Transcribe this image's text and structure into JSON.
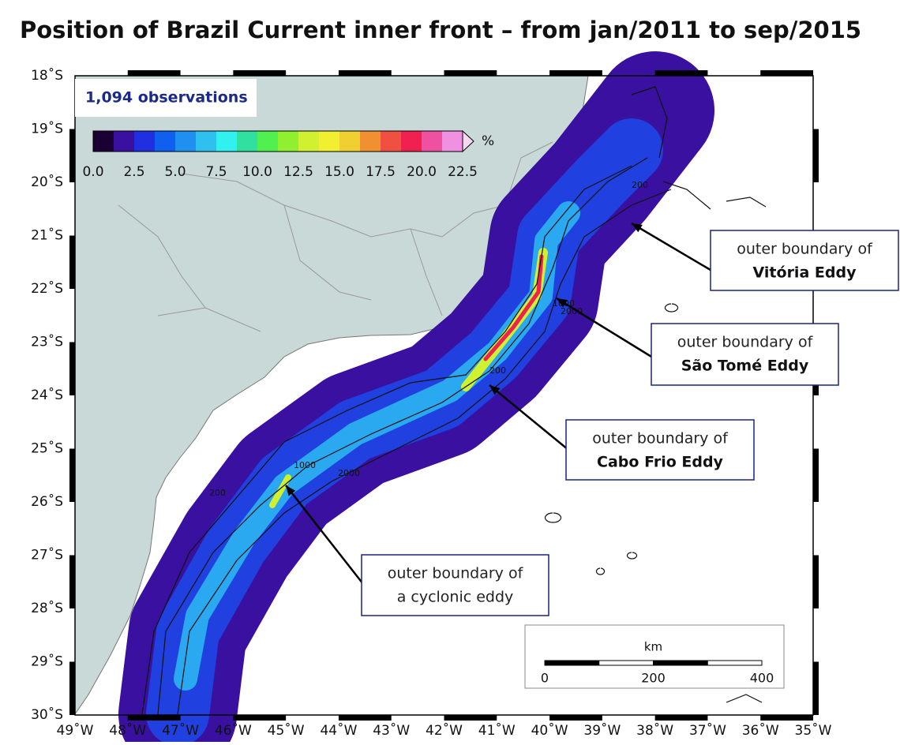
{
  "title": "Position of Brazil Current inner front – from jan/2011 to sep/2015",
  "observations": "1,094 observations",
  "colorbar": {
    "ticks": [
      "0.0",
      "2.5",
      "5.0",
      "7.5",
      "10.0",
      "12.5",
      "15.0",
      "17.5",
      "20.0",
      "22.5"
    ],
    "unit": "%",
    "colors": [
      "#1a0033",
      "#3a10a0",
      "#2030e0",
      "#1060f0",
      "#2090f0",
      "#30c0f0",
      "#30f0f0",
      "#30e0a0",
      "#50f050",
      "#90f030",
      "#d0f030",
      "#f0f030",
      "#f0d030",
      "#f09030",
      "#f05040",
      "#f02050",
      "#f050a0",
      "#f090e0",
      "#f8d8f0"
    ]
  },
  "lat_labels": [
    "18˚S",
    "19˚S",
    "20˚S",
    "21˚S",
    "22˚S",
    "23˚S",
    "24˚S",
    "25˚S",
    "26˚S",
    "27˚S",
    "28˚S",
    "29˚S",
    "30˚S"
  ],
  "lon_labels": [
    "49˚W",
    "48˚W",
    "47˚W",
    "46˚W",
    "45˚W",
    "44˚W",
    "43˚W",
    "42˚W",
    "41˚W",
    "40˚W",
    "39˚W",
    "38˚W",
    "37˚W",
    "36˚W",
    "35˚W"
  ],
  "contour_labels": [
    "200",
    "1000",
    "2000",
    "200",
    "1000",
    "2000",
    "200"
  ],
  "annotations": [
    {
      "line1": "outer boundary of",
      "line2": "Vitória Eddy"
    },
    {
      "line1": "outer boundary of",
      "line2": "São Tomé Eddy"
    },
    {
      "line1": "outer boundary of",
      "line2": "Cabo Frio Eddy"
    },
    {
      "line1": "outer boundary of",
      "line2": "a cyclonic eddy"
    }
  ],
  "scale": {
    "unit": "km",
    "ticks": [
      "0",
      "200",
      "400"
    ]
  }
}
